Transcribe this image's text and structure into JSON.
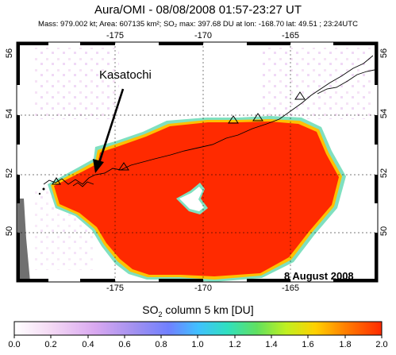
{
  "header": {
    "title": "Aura/OMI - 08/08/2008 01:57-23:27 UT",
    "subtitle": "Mass: 979.002 kt; Area: 607135 km²; SO₂ max: 397.68 DU at lon: -168.70 lat: 49.51 ; 23:24UTC"
  },
  "map": {
    "lon_ticks": [
      "-175",
      "-170",
      "-165"
    ],
    "lat_ticks": [
      "56",
      "54",
      "52",
      "50"
    ],
    "volcano_label": "Kasatochi",
    "date_label": "8 August 2008",
    "plume_color": "#ff2a00"
  },
  "colorbar": {
    "title_prefix": "SO",
    "title_sub": "2",
    "title_suffix": " column 5 km [DU]",
    "ticks": [
      "0.0",
      "0.2",
      "0.4",
      "0.6",
      "0.8",
      "1.0",
      "1.2",
      "1.4",
      "1.6",
      "1.8",
      "2.0"
    ],
    "colors": [
      "#ffffff",
      "#f4d9f4",
      "#d9a8f0",
      "#a090f0",
      "#7080ff",
      "#40c0ff",
      "#30e0c0",
      "#60e060",
      "#c0f020",
      "#ffd000",
      "#ff8000",
      "#ff2a00"
    ]
  }
}
